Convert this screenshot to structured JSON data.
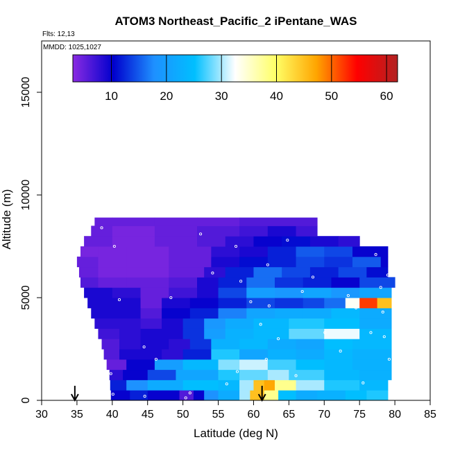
{
  "chart_data": {
    "type": "heatmap",
    "title": "ATOM3 Northeast_Pacific_2 iPentane_WAS",
    "flights_text": "Flts: 12,13",
    "mmdd_text": "MMDD: 1025,1027",
    "xlabel": "Latitude (deg N)",
    "ylabel": "Altitude (m)",
    "xlim": [
      30,
      85
    ],
    "ylim": [
      0,
      17500
    ],
    "x_ticks": [
      30,
      35,
      40,
      45,
      50,
      55,
      60,
      65,
      70,
      75,
      80,
      85
    ],
    "y_ticks": [
      0,
      5000,
      10000,
      15000
    ],
    "colorbar": {
      "range": [
        3,
        62
      ],
      "ticks": [
        10,
        20,
        30,
        40,
        50,
        60
      ],
      "colors": [
        "#8a2be2",
        "#0000cd",
        "#1e90ff",
        "#00bfff",
        "#ffffff",
        "#ffff66",
        "#ffa500",
        "#ff0000",
        "#b22222"
      ]
    },
    "arrows": [
      34.7,
      61.2
    ],
    "rows": [
      {
        "alt": [
          0,
          500
        ],
        "segments": [
          [
            39.8,
            42.5,
            10
          ],
          [
            42.5,
            45,
            12
          ],
          [
            45,
            49.5,
            10
          ],
          [
            49.5,
            51.5,
            6
          ],
          [
            51.5,
            53,
            10
          ],
          [
            53,
            55,
            18
          ],
          [
            55,
            58,
            22
          ],
          [
            58,
            59.5,
            30
          ],
          [
            59.5,
            61.5,
            45
          ],
          [
            61.5,
            63.5,
            38
          ],
          [
            63.5,
            66,
            25
          ],
          [
            66,
            69,
            22
          ],
          [
            69,
            73,
            23
          ],
          [
            73,
            76,
            25
          ],
          [
            76,
            79,
            26
          ]
        ]
      },
      {
        "alt": [
          500,
          1000
        ],
        "segments": [
          [
            39.7,
            42,
            12
          ],
          [
            42,
            45,
            18
          ],
          [
            45,
            50,
            22
          ],
          [
            50,
            55,
            25
          ],
          [
            55,
            58,
            24
          ],
          [
            58,
            60,
            30
          ],
          [
            60,
            61.5,
            45
          ],
          [
            61.5,
            63,
            47
          ],
          [
            63,
            66,
            38
          ],
          [
            66,
            70,
            30
          ],
          [
            70,
            75,
            26
          ],
          [
            75,
            79,
            24
          ]
        ]
      },
      {
        "alt": [
          1000,
          1500
        ],
        "segments": [
          [
            39.6,
            41.5,
            8
          ],
          [
            41.5,
            45,
            10
          ],
          [
            45,
            49,
            14
          ],
          [
            49,
            55,
            21
          ],
          [
            55,
            58,
            26
          ],
          [
            58,
            62,
            28
          ],
          [
            62,
            65,
            30
          ],
          [
            65,
            70,
            27
          ],
          [
            70,
            75,
            24
          ],
          [
            75,
            79.5,
            23
          ]
        ]
      },
      {
        "alt": [
          1500,
          2000
        ],
        "segments": [
          [
            39.2,
            42,
            5
          ],
          [
            42,
            46,
            10
          ],
          [
            46,
            50,
            20
          ],
          [
            50,
            55,
            24
          ],
          [
            55,
            58,
            29
          ],
          [
            58,
            62,
            31
          ],
          [
            62,
            66,
            27
          ],
          [
            66,
            70,
            25
          ],
          [
            70,
            74,
            24
          ],
          [
            74,
            79.5,
            23
          ]
        ]
      },
      {
        "alt": [
          2000,
          2500
        ],
        "segments": [
          [
            38.8,
            41,
            6
          ],
          [
            41,
            44,
            9
          ],
          [
            44,
            47,
            9
          ],
          [
            47,
            50,
            8
          ],
          [
            50,
            54,
            12
          ],
          [
            54,
            58,
            26
          ],
          [
            58,
            62,
            21
          ],
          [
            62,
            66,
            23
          ],
          [
            66,
            70,
            22
          ],
          [
            70,
            74,
            24
          ],
          [
            74,
            79.5,
            23
          ]
        ]
      },
      {
        "alt": [
          2500,
          3000
        ],
        "segments": [
          [
            38.5,
            41,
            6
          ],
          [
            41,
            44,
            8
          ],
          [
            44,
            48,
            9
          ],
          [
            48,
            51,
            8
          ],
          [
            51,
            54,
            13
          ],
          [
            54,
            58,
            23
          ],
          [
            58,
            62,
            24
          ],
          [
            62,
            66,
            22
          ],
          [
            66,
            70,
            21
          ],
          [
            70,
            74,
            25
          ],
          [
            74,
            79.5,
            24
          ]
        ]
      },
      {
        "alt": [
          3000,
          3500
        ],
        "segments": [
          [
            38,
            41,
            7
          ],
          [
            41,
            44,
            8
          ],
          [
            44,
            47,
            9
          ],
          [
            47,
            50,
            9
          ],
          [
            50,
            53,
            13
          ],
          [
            53,
            56,
            20
          ],
          [
            56,
            60,
            23
          ],
          [
            60,
            65,
            24
          ],
          [
            65,
            70,
            28
          ],
          [
            70,
            75,
            32
          ],
          [
            75,
            79.5,
            24
          ]
        ]
      },
      {
        "alt": [
          3500,
          4000
        ],
        "segments": [
          [
            37.5,
            40,
            8
          ],
          [
            40,
            44,
            8
          ],
          [
            44,
            47,
            7
          ],
          [
            47,
            50,
            9
          ],
          [
            50,
            53,
            13
          ],
          [
            53,
            56,
            19
          ],
          [
            56,
            60,
            22
          ],
          [
            60,
            65,
            24
          ],
          [
            65,
            70,
            26
          ],
          [
            70,
            75,
            25
          ],
          [
            75,
            79.5,
            22
          ]
        ]
      },
      {
        "alt": [
          4000,
          4500
        ],
        "segments": [
          [
            37,
            40,
            9
          ],
          [
            40,
            44,
            9
          ],
          [
            44,
            47,
            6
          ],
          [
            47,
            51,
            10
          ],
          [
            51,
            55,
            12
          ],
          [
            55,
            59,
            17
          ],
          [
            59,
            63,
            21
          ],
          [
            63,
            67,
            22
          ],
          [
            67,
            71,
            22
          ],
          [
            71,
            75,
            24
          ],
          [
            75,
            79.5,
            22
          ]
        ]
      },
      {
        "alt": [
          4500,
          5000
        ],
        "segments": [
          [
            36.5,
            40,
            9
          ],
          [
            40,
            44,
            9
          ],
          [
            44,
            47,
            5
          ],
          [
            47,
            51,
            9
          ],
          [
            51,
            55,
            10
          ],
          [
            55,
            59,
            12
          ],
          [
            59,
            63,
            14
          ],
          [
            63,
            67,
            13
          ],
          [
            67,
            70,
            14
          ],
          [
            70,
            73,
            16
          ],
          [
            73,
            75,
            33
          ],
          [
            75,
            77.5,
            52
          ],
          [
            77.5,
            79.5,
            45
          ]
        ]
      },
      {
        "alt": [
          5000,
          5500
        ],
        "segments": [
          [
            36,
            40,
            9
          ],
          [
            40,
            44,
            8
          ],
          [
            44,
            48,
            5
          ],
          [
            48,
            52,
            7
          ],
          [
            52,
            55,
            9
          ],
          [
            55,
            59,
            14
          ],
          [
            59,
            63,
            20
          ],
          [
            63,
            67,
            19
          ],
          [
            67,
            71,
            21
          ],
          [
            71,
            75,
            19
          ],
          [
            75,
            79.5,
            21
          ]
        ]
      },
      {
        "alt": [
          5500,
          6000
        ],
        "segments": [
          [
            35.5,
            38,
            6
          ],
          [
            38,
            42,
            5
          ],
          [
            42,
            48,
            5
          ],
          [
            48,
            52,
            6
          ],
          [
            52,
            55,
            9
          ],
          [
            55,
            59,
            12
          ],
          [
            59,
            63,
            16
          ],
          [
            63,
            67,
            13
          ],
          [
            67,
            71,
            12
          ],
          [
            71,
            75,
            10
          ],
          [
            75,
            80,
            14
          ]
        ]
      },
      {
        "alt": [
          6000,
          6500
        ],
        "segments": [
          [
            35.3,
            38,
            5
          ],
          [
            38,
            42,
            4
          ],
          [
            42,
            48,
            4
          ],
          [
            48,
            53,
            5
          ],
          [
            53,
            56,
            8
          ],
          [
            56,
            60,
            12
          ],
          [
            60,
            64,
            16
          ],
          [
            64,
            68,
            14
          ],
          [
            68,
            72,
            12
          ],
          [
            72,
            76,
            14
          ],
          [
            76,
            79,
            11
          ]
        ]
      },
      {
        "alt": [
          6500,
          7000
        ],
        "segments": [
          [
            35,
            38,
            5
          ],
          [
            38,
            42,
            4
          ],
          [
            42,
            48,
            4
          ],
          [
            48,
            54,
            5
          ],
          [
            54,
            58,
            9
          ],
          [
            58,
            62,
            11
          ],
          [
            62,
            66,
            12
          ],
          [
            66,
            70,
            14
          ],
          [
            70,
            74,
            13
          ],
          [
            74,
            78,
            15
          ],
          [
            78,
            79,
            10
          ]
        ]
      },
      {
        "alt": [
          7000,
          7500
        ],
        "segments": [
          [
            35.5,
            38,
            4
          ],
          [
            38,
            42,
            4
          ],
          [
            42,
            48,
            4
          ],
          [
            48,
            54,
            5
          ],
          [
            54,
            58,
            8
          ],
          [
            58,
            62,
            9
          ],
          [
            62,
            66,
            12
          ],
          [
            66,
            70,
            15
          ],
          [
            70,
            74,
            14
          ],
          [
            74,
            79,
            10
          ]
        ]
      },
      {
        "alt": [
          7500,
          8000
        ],
        "segments": [
          [
            36,
            40,
            5
          ],
          [
            40,
            46,
            4
          ],
          [
            46,
            52,
            5
          ],
          [
            52,
            56,
            6
          ],
          [
            56,
            60,
            8
          ],
          [
            60,
            64,
            10
          ],
          [
            64,
            68,
            11
          ],
          [
            68,
            72,
            9
          ],
          [
            72,
            75,
            8
          ]
        ]
      },
      {
        "alt": [
          8000,
          8500
        ],
        "segments": [
          [
            37,
            40,
            5
          ],
          [
            40,
            46,
            4
          ],
          [
            46,
            52,
            5
          ],
          [
            52,
            58,
            6
          ],
          [
            58,
            62,
            7
          ],
          [
            62,
            66,
            9
          ],
          [
            66,
            69,
            7
          ]
        ]
      },
      {
        "alt": [
          8500,
          8900
        ],
        "segments": [
          [
            37.5,
            40,
            5
          ],
          [
            40,
            46,
            5
          ],
          [
            46,
            52,
            5
          ],
          [
            52,
            58,
            5
          ],
          [
            58,
            63,
            6
          ],
          [
            63,
            69,
            6
          ]
        ]
      }
    ],
    "samples": [
      [
        38.5,
        8400
      ],
      [
        40.3,
        7500
      ],
      [
        41,
        4900
      ],
      [
        44.5,
        2600
      ],
      [
        39.8,
        1300
      ],
      [
        40.1,
        300
      ],
      [
        44.6,
        200
      ],
      [
        46.2,
        2000
      ],
      [
        50.4,
        120
      ],
      [
        51,
        360
      ],
      [
        52.5,
        8100
      ],
      [
        57.5,
        7500
      ],
      [
        59.6,
        4800
      ],
      [
        62,
        6600
      ],
      [
        64.8,
        7800
      ],
      [
        61.8,
        2000
      ],
      [
        63.5,
        3000
      ],
      [
        66,
        1200
      ],
      [
        70.1,
        3300
      ],
      [
        72.3,
        2400
      ],
      [
        75.5,
        850
      ],
      [
        77.3,
        7100
      ],
      [
        78,
        5500
      ],
      [
        78.3,
        4300
      ],
      [
        78.5,
        3100
      ],
      [
        79,
        6100
      ],
      [
        79.2,
        2000
      ],
      [
        79.3,
        150
      ],
      [
        48.3,
        5000
      ],
      [
        54.2,
        6200
      ],
      [
        57.7,
        1400
      ],
      [
        61,
        3700
      ],
      [
        62.2,
        4600
      ],
      [
        66.9,
        5300
      ],
      [
        68.4,
        6000
      ],
      [
        73.4,
        5100
      ],
      [
        74.5,
        4500
      ],
      [
        76.6,
        3300
      ],
      [
        58.2,
        5800
      ],
      [
        56.2,
        800
      ]
    ]
  }
}
